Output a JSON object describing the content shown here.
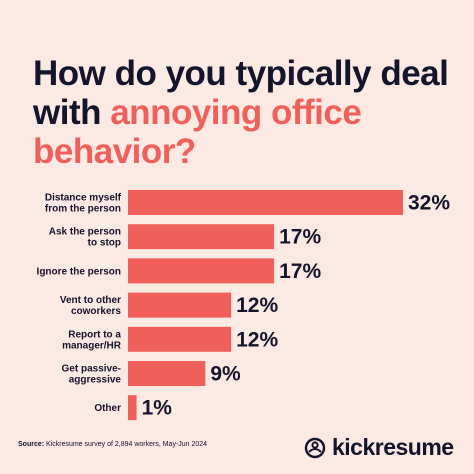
{
  "title": {
    "line_start": "How do you typically deal with ",
    "accent": "annoying office behavior?"
  },
  "chart_data": {
    "type": "bar",
    "orientation": "horizontal",
    "categories": [
      [
        "Distance myself",
        "from the person"
      ],
      [
        "Ask the person",
        "to stop"
      ],
      [
        "Ignore the person"
      ],
      [
        "Vent to other",
        "coworkers"
      ],
      [
        "Report to a",
        "manager/HR"
      ],
      [
        "Get passive-",
        "aggressive"
      ],
      [
        "Other"
      ]
    ],
    "values": [
      32,
      17,
      17,
      12,
      12,
      9,
      1
    ],
    "value_labels": [
      "32%",
      "17%",
      "17%",
      "12%",
      "12%",
      "9%",
      "1%"
    ],
    "unit": "%",
    "grid": false,
    "legend": "none"
  },
  "colors": {
    "background": "#fbe9e4",
    "bar": "#f0605a",
    "text": "#14142b",
    "accent": "#f0605a"
  },
  "footer": {
    "source_label": "Source:",
    "source_text": " Kickresume survey of 2,894 workers, May-Jun 2024"
  },
  "brand": {
    "name": "kickresume",
    "icon": "kickresume-logo-icon"
  }
}
